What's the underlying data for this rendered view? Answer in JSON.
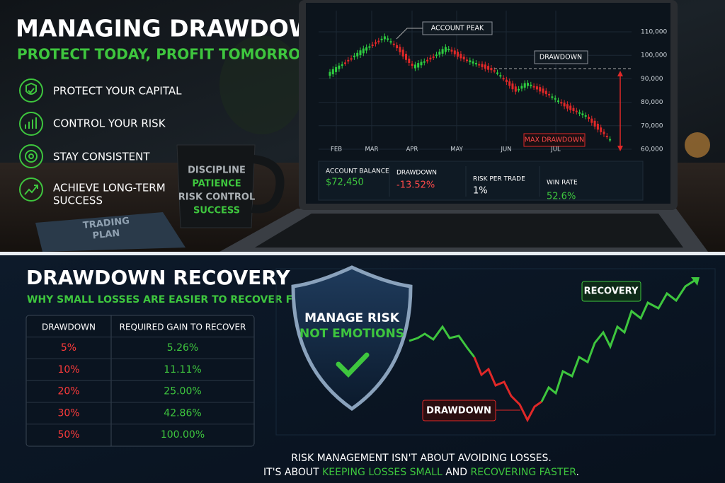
{
  "top": {
    "title": "MANAGING DRAWDOWN",
    "subtitle": "PROTECT TODAY, PROFIT TOMORROW",
    "points": [
      "PROTECT YOUR CAPITAL",
      "CONTROL YOUR RISK",
      "STAY CONSISTENT",
      [
        "ACHIEVE LONG-TERM",
        "SUCCESS"
      ]
    ],
    "mug": [
      "DISCIPLINE",
      "PATIENCE",
      "RISK CONTROL",
      "SUCCESS"
    ],
    "book": [
      "TRADING",
      "PLAN"
    ],
    "screen": {
      "annotations": {
        "peak": "ACCOUNT PEAK",
        "drawdown": "DRAWDOWN",
        "max": "MAX DRAWDOWN"
      },
      "yticks": [
        "110,000",
        "100,000",
        "90,000",
        "80,000",
        "70,000",
        "60,000"
      ],
      "months": [
        "FEB",
        "MAR",
        "APR",
        "MAY",
        "JUN",
        "JUL"
      ],
      "stats": [
        {
          "label": "ACCOUNT BALANCE",
          "value": "$72,450"
        },
        {
          "label": "DRAWDOWN",
          "value": "-13.52%"
        },
        {
          "label": "RISK PER TRADE",
          "value": "1%"
        },
        {
          "label": "WIN RATE",
          "value": "52.6%"
        }
      ]
    }
  },
  "bottom": {
    "title": "DRAWDOWN RECOVERY",
    "subtitle": "WHY SMALL LOSSES ARE EASIER TO RECOVER FROM",
    "table": {
      "header": [
        "DRAWDOWN",
        "REQUIRED GAIN TO RECOVER"
      ],
      "rows": [
        [
          "5%",
          "5.26%"
        ],
        [
          "10%",
          "11.11%"
        ],
        [
          "20%",
          "25.00%"
        ],
        [
          "30%",
          "42.86%"
        ],
        [
          "50%",
          "100.00%"
        ]
      ]
    },
    "shield": [
      "MANAGE RISK",
      "NOT EMOTIONS"
    ],
    "labels": {
      "recovery": "RECOVERY",
      "drawdown": "DRAWDOWN"
    },
    "footer": {
      "line1": "RISK MANAGEMENT ISN'T ABOUT AVOIDING LOSSES.",
      "line2": [
        "IT'S ABOUT ",
        "KEEPING LOSSES SMALL",
        " AND ",
        "RECOVERING FASTER",
        "."
      ]
    }
  }
}
